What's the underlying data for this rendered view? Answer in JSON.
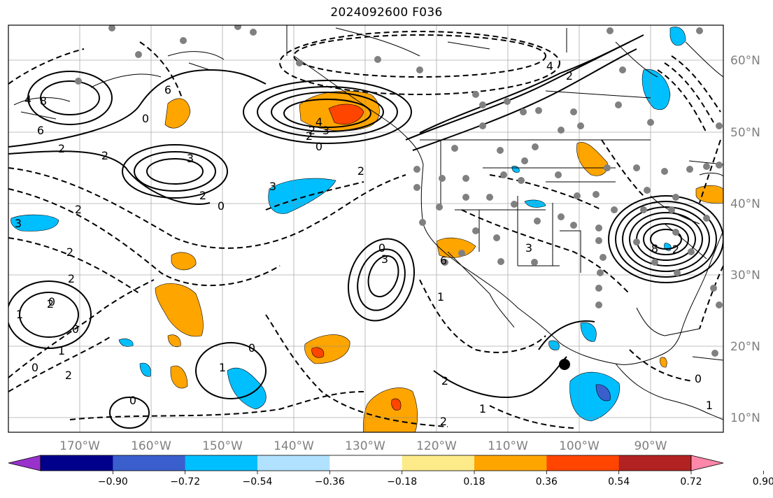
{
  "title": "2024092600 F036",
  "map": {
    "lon_labels": [
      "170°W",
      "160°W",
      "150°W",
      "140°W",
      "130°W",
      "120°W",
      "110°W",
      "100°W",
      "90°W"
    ],
    "lat_labels": [
      "60°N",
      "50°N",
      "40°N",
      "30°N",
      "20°N",
      "10°N"
    ],
    "contour_labels": [
      "6",
      "4",
      "2",
      "2",
      "0",
      "3",
      "2",
      "2",
      "3",
      "2",
      "0",
      "3",
      "4",
      "2",
      "0",
      "2",
      "3",
      "2",
      "2",
      "0",
      "2",
      "1",
      "0",
      "1",
      "0",
      "2",
      "0",
      "3",
      "0",
      "1",
      "0",
      "6",
      "8",
      "2",
      "3",
      "6",
      "8",
      "4",
      "2",
      "1",
      "2",
      "2",
      "1",
      "0",
      "1"
    ]
  },
  "colorbar": {
    "ticks": [
      "−0.90",
      "−0.72",
      "−0.54",
      "−0.36",
      "−0.18",
      "0.18",
      "0.36",
      "0.54",
      "0.72",
      "0.90"
    ],
    "colors": [
      "#9932cc",
      "#00008b",
      "#3a5fcd",
      "#00bfff",
      "#b0e2ff",
      "#ffffff",
      "#fdeb8a",
      "#ffa500",
      "#ff4500",
      "#b22222",
      "#ff88aa"
    ]
  }
}
